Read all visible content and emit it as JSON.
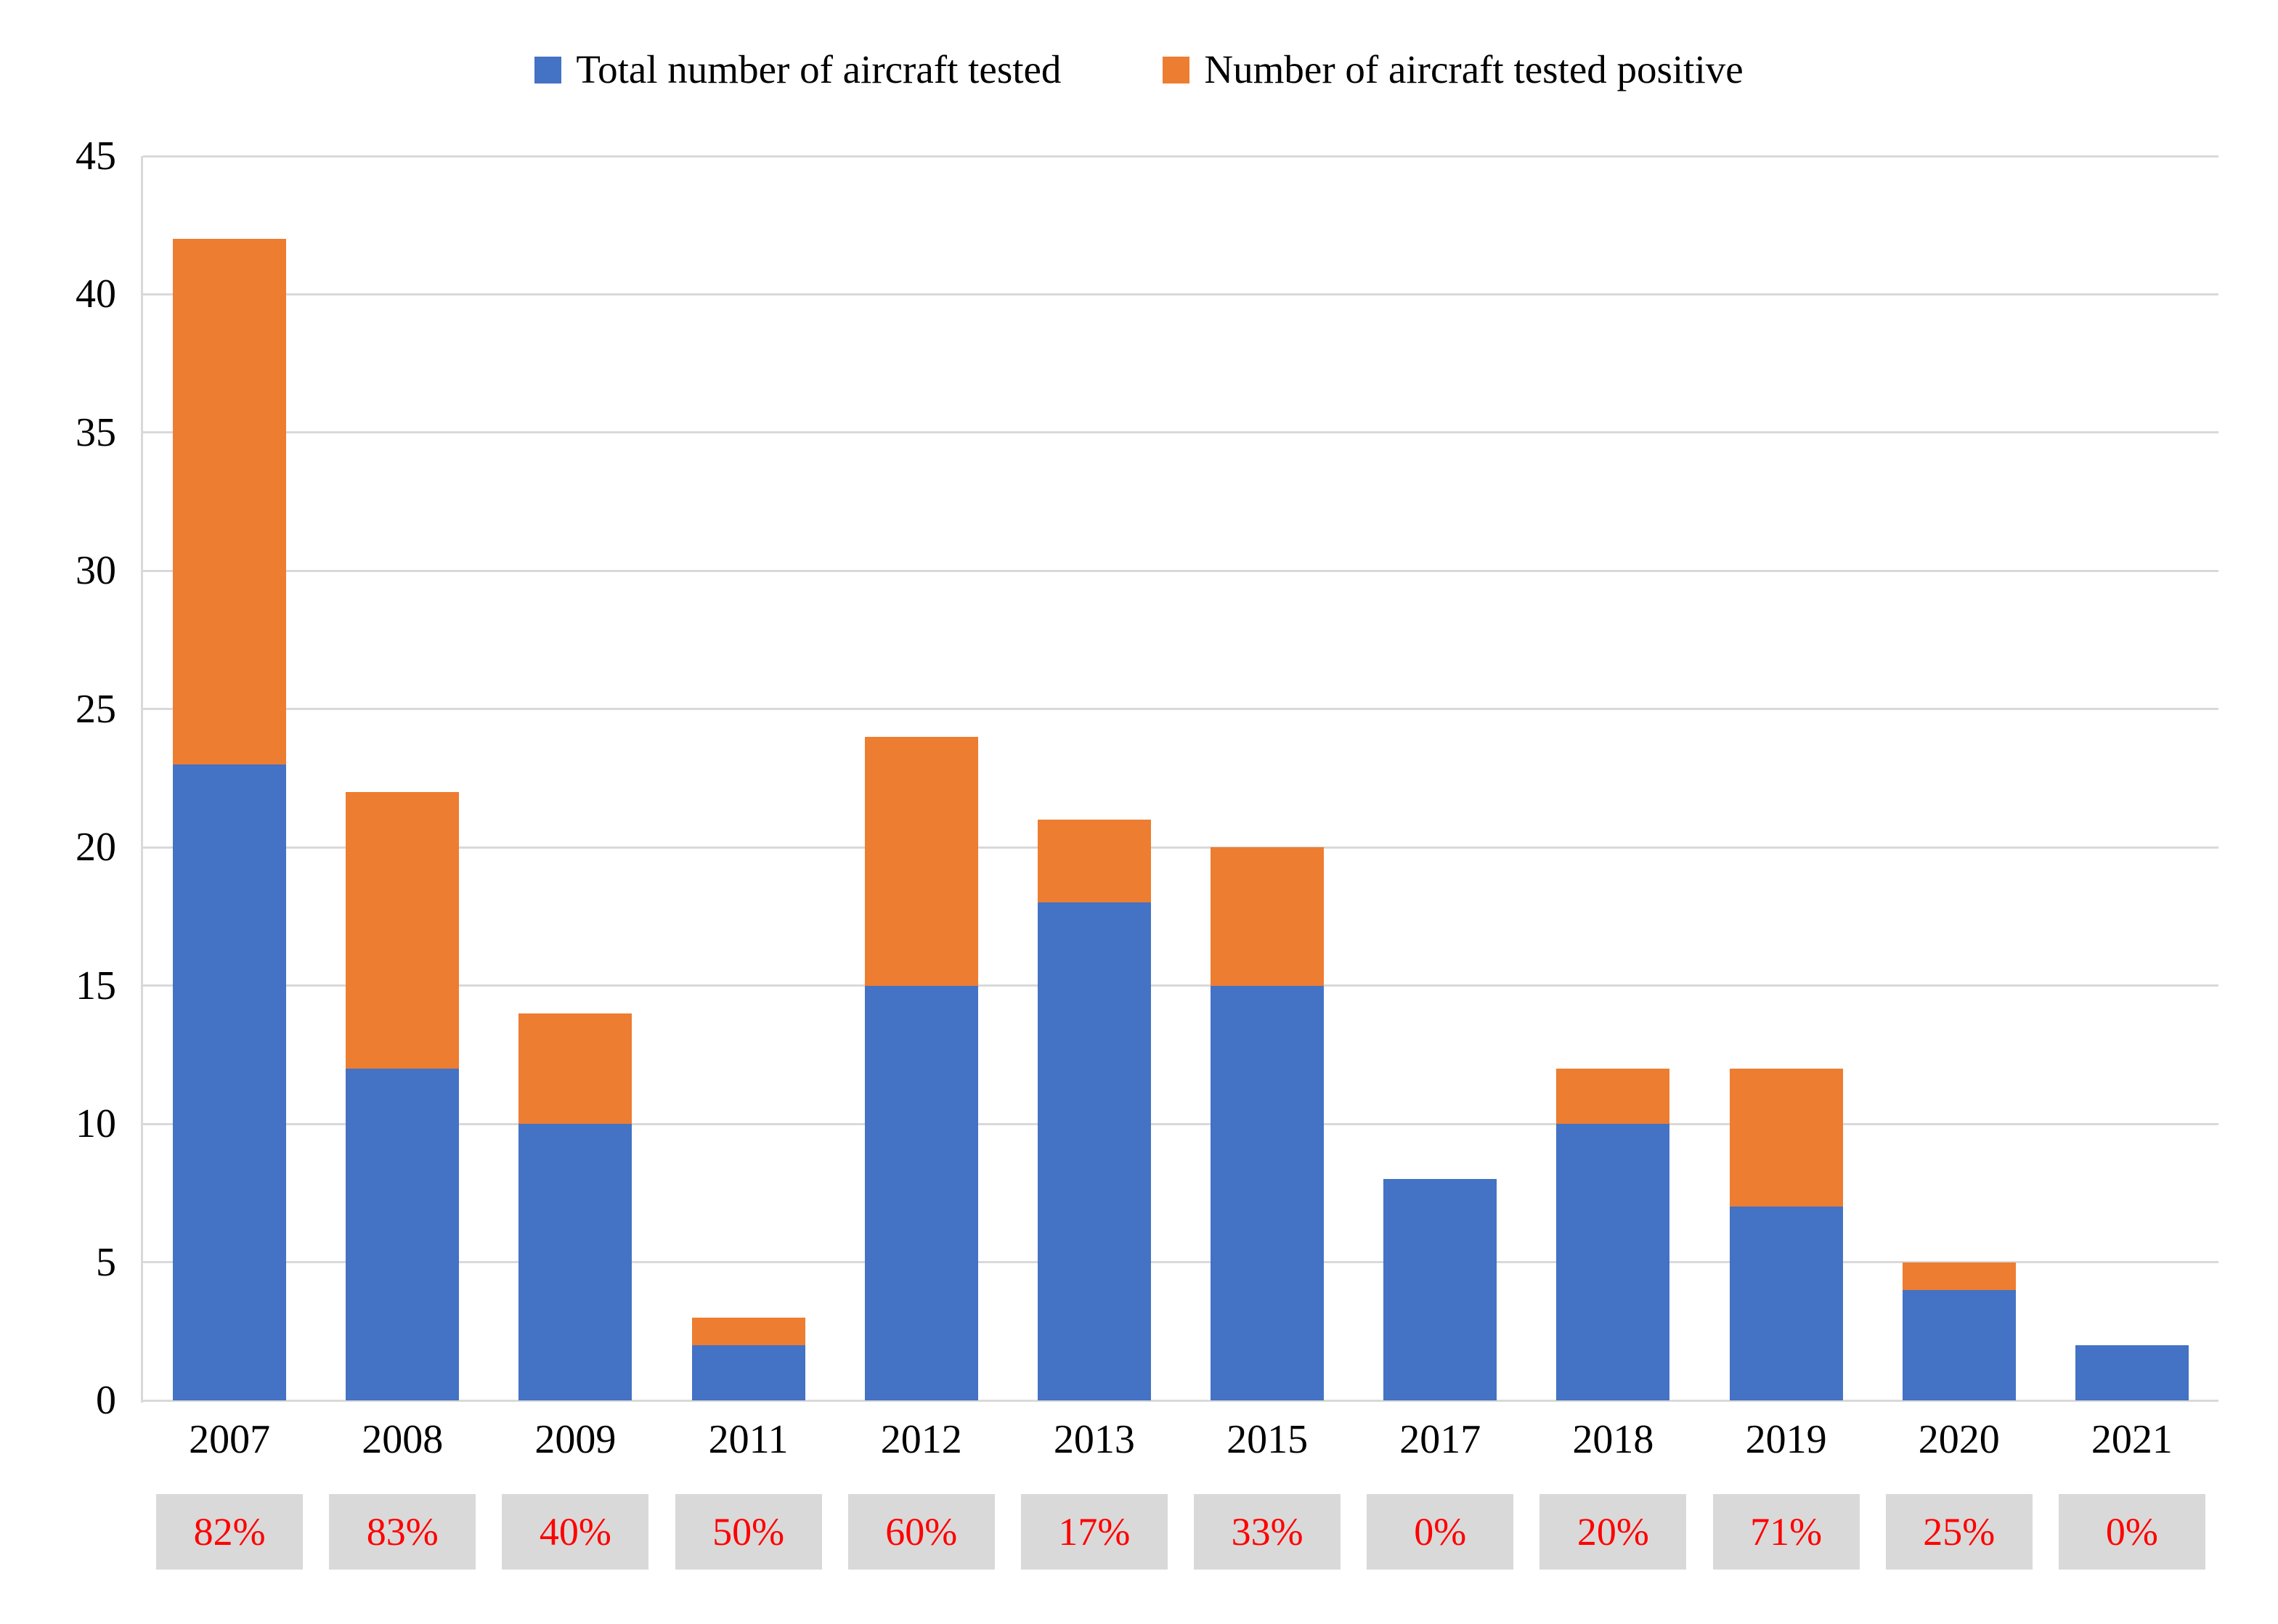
{
  "legend": {
    "items": [
      {
        "label": "Total number of aircraft tested",
        "color": "#4472C4"
      },
      {
        "label": "Number of aircraft tested positive",
        "color": "#ED7D31"
      }
    ]
  },
  "chart_data": {
    "type": "bar",
    "stacked": true,
    "title": "",
    "xlabel": "",
    "ylabel": "",
    "categories": [
      "2007",
      "2008",
      "2009",
      "2011",
      "2012",
      "2013",
      "2015",
      "2017",
      "2018",
      "2019",
      "2020",
      "2021"
    ],
    "series": [
      {
        "name": "Total number of aircraft tested",
        "color": "#4472C4",
        "values": [
          23,
          12,
          10,
          2,
          15,
          18,
          15,
          8,
          10,
          7,
          4,
          2
        ]
      },
      {
        "name": "Number of aircraft tested positive",
        "color": "#ED7D31",
        "values": [
          19,
          10,
          4,
          1,
          9,
          3,
          5,
          0,
          2,
          5,
          1,
          0
        ]
      }
    ],
    "stack_totals": [
      42,
      22,
      14,
      3,
      24,
      21,
      20,
      8,
      12,
      12,
      5,
      2
    ],
    "percent_positive_labels": [
      "82%",
      "83%",
      "40%",
      "50%",
      "60%",
      "17%",
      "33%",
      "0%",
      "20%",
      "71%",
      "25%",
      "0%"
    ],
    "ylim": [
      0,
      45
    ],
    "yticks": [
      0,
      5,
      10,
      15,
      20,
      25,
      30,
      35,
      40,
      45
    ],
    "grid": true,
    "legend_position": "top"
  },
  "colors": {
    "bar_blue": "#4472C4",
    "bar_orange": "#ED7D31",
    "gridline": "#D9D9D9",
    "axis_line": "#D9D9D9",
    "percent_box_bg": "#D9D9D9",
    "percent_text": "#FF0000",
    "label_text": "#000000",
    "background": "#FFFFFF"
  }
}
